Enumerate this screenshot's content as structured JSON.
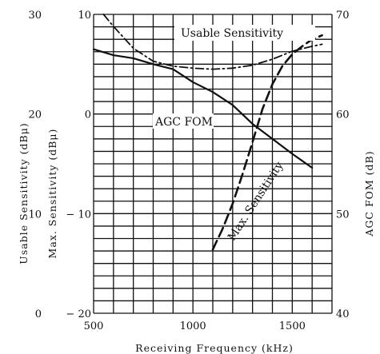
{
  "chart_data": {
    "type": "line",
    "xlabel": "Receiving Frequency (kHz)",
    "xlim": [
      500,
      1700
    ],
    "x_ticks": [
      {
        "value": 500,
        "label": "500"
      },
      {
        "value": 1000,
        "label": "1000"
      },
      {
        "value": 1500,
        "label": "1500"
      }
    ],
    "axes": {
      "usable": {
        "label": "Usable Sensitivity (dBμ)",
        "range": [
          0,
          30
        ],
        "ticks": [
          {
            "value": 0,
            "label": "0"
          },
          {
            "value": 10,
            "label": "10"
          },
          {
            "value": 20,
            "label": "20"
          },
          {
            "value": 30,
            "label": "30"
          }
        ]
      },
      "max": {
        "label": "Max. Sensitivity (dBμ)",
        "range": [
          -20,
          10
        ],
        "ticks": [
          {
            "value": -20,
            "label": "− 20"
          },
          {
            "value": -10,
            "label": "− 10"
          },
          {
            "value": 0,
            "label": "0"
          },
          {
            "value": 10,
            "label": "10"
          }
        ]
      },
      "agc": {
        "label": "AGC FOM (dB)",
        "range": [
          40,
          70
        ],
        "ticks": [
          {
            "value": 40,
            "label": "40"
          },
          {
            "value": 50,
            "label": "50"
          },
          {
            "value": 60,
            "label": "60"
          },
          {
            "value": 70,
            "label": "70"
          }
        ]
      }
    },
    "series": [
      {
        "name": "Usable Sensitivity",
        "axis": "usable",
        "style": "dash-dot",
        "points": [
          [
            550,
            30
          ],
          [
            600,
            28.8
          ],
          [
            700,
            26.6
          ],
          [
            800,
            25.3
          ],
          [
            900,
            24.8
          ],
          [
            1000,
            24.6
          ],
          [
            1100,
            24.5
          ],
          [
            1200,
            24.6
          ],
          [
            1300,
            24.9
          ],
          [
            1400,
            25.5
          ],
          [
            1500,
            26.3
          ],
          [
            1600,
            26.8
          ],
          [
            1650,
            27
          ]
        ]
      },
      {
        "name": "AGC FOM",
        "axis": "agc",
        "style": "solid",
        "points": [
          [
            500,
            66.5
          ],
          [
            600,
            65.9
          ],
          [
            700,
            65.6
          ],
          [
            800,
            65
          ],
          [
            900,
            64.5
          ],
          [
            1000,
            63.2
          ],
          [
            1100,
            62.2
          ],
          [
            1200,
            60.9
          ],
          [
            1300,
            59
          ],
          [
            1400,
            57.5
          ],
          [
            1500,
            56
          ],
          [
            1600,
            54.6
          ]
        ]
      },
      {
        "name": "Max. Sensitivity",
        "axis": "max",
        "style": "dashed",
        "points": [
          [
            1100,
            -13.6
          ],
          [
            1150,
            -11.5
          ],
          [
            1200,
            -9
          ],
          [
            1250,
            -6
          ],
          [
            1300,
            -2.8
          ],
          [
            1350,
            0.5
          ],
          [
            1400,
            3
          ],
          [
            1450,
            4.8
          ],
          [
            1500,
            6
          ],
          [
            1550,
            6.8
          ],
          [
            1600,
            7.5
          ],
          [
            1650,
            7.9
          ]
        ]
      }
    ],
    "annotations": [
      {
        "id": "usable",
        "text": "Usable Sensitivity"
      },
      {
        "id": "agc",
        "text": "AGC FOM"
      },
      {
        "id": "max",
        "text": "Max. Sensitivity"
      }
    ],
    "grid": true
  }
}
